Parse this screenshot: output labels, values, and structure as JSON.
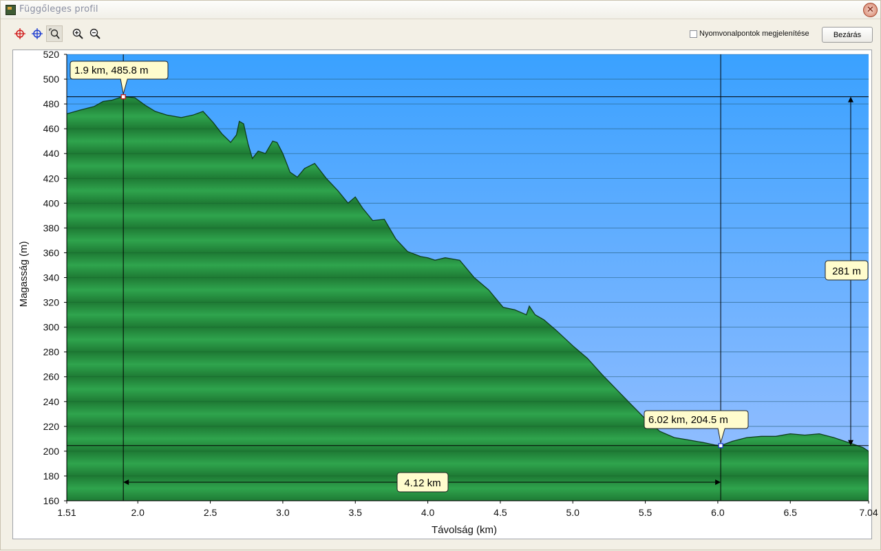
{
  "window": {
    "title": "Függőleges profil"
  },
  "toolbar": {
    "tools": [
      {
        "name": "crosshair-red-icon"
      },
      {
        "name": "crosshair-blue-icon"
      },
      {
        "name": "zoom-select-icon"
      },
      {
        "name": "zoom-in-icon"
      },
      {
        "name": "zoom-out-icon"
      }
    ],
    "show_trackpoints_label": "Nyomvonalpontok megjelenítése",
    "show_trackpoints_checked": false,
    "close_label": "Bezárás"
  },
  "colors": {
    "sky_top": "#3aa1ff",
    "sky_bottom": "#9ac0ff",
    "terrain_dark": "#1e7a34",
    "terrain_light": "#2fa44d"
  },
  "chart_data": {
    "type": "area",
    "xlabel": "Távolság   (km)",
    "ylabel": "Magasság (m)",
    "xlim": [
      1.51,
      7.04
    ],
    "ylim": [
      160,
      520
    ],
    "x_ticks": [
      "1.51",
      "2.0",
      "2.5",
      "3.0",
      "3.5",
      "4.0",
      "4.5",
      "5.0",
      "5.5",
      "6.0",
      "6.5",
      "7.04"
    ],
    "y_ticks": [
      160,
      180,
      200,
      220,
      240,
      260,
      280,
      300,
      320,
      340,
      360,
      380,
      400,
      420,
      440,
      460,
      480,
      500,
      520
    ],
    "grid": true,
    "profile": [
      [
        1.51,
        472
      ],
      [
        1.6,
        475
      ],
      [
        1.7,
        478
      ],
      [
        1.76,
        482
      ],
      [
        1.82,
        483
      ],
      [
        1.9,
        486
      ],
      [
        1.98,
        485
      ],
      [
        2.05,
        479
      ],
      [
        2.12,
        474
      ],
      [
        2.2,
        471
      ],
      [
        2.3,
        469
      ],
      [
        2.38,
        471
      ],
      [
        2.45,
        474
      ],
      [
        2.52,
        465
      ],
      [
        2.58,
        456
      ],
      [
        2.64,
        449
      ],
      [
        2.68,
        455
      ],
      [
        2.7,
        466
      ],
      [
        2.73,
        464
      ],
      [
        2.76,
        448
      ],
      [
        2.79,
        436
      ],
      [
        2.83,
        442
      ],
      [
        2.88,
        440
      ],
      [
        2.93,
        450
      ],
      [
        2.96,
        449
      ],
      [
        3.0,
        440
      ],
      [
        3.05,
        425
      ],
      [
        3.1,
        421
      ],
      [
        3.15,
        428
      ],
      [
        3.22,
        432
      ],
      [
        3.3,
        420
      ],
      [
        3.38,
        410
      ],
      [
        3.45,
        400
      ],
      [
        3.5,
        405
      ],
      [
        3.55,
        396
      ],
      [
        3.62,
        386
      ],
      [
        3.7,
        387
      ],
      [
        3.78,
        371
      ],
      [
        3.86,
        361
      ],
      [
        3.95,
        357
      ],
      [
        4.0,
        356
      ],
      [
        4.05,
        354
      ],
      [
        4.12,
        356
      ],
      [
        4.22,
        354
      ],
      [
        4.32,
        340
      ],
      [
        4.42,
        330
      ],
      [
        4.52,
        316
      ],
      [
        4.6,
        314
      ],
      [
        4.68,
        310
      ],
      [
        4.7,
        317
      ],
      [
        4.74,
        310
      ],
      [
        4.8,
        306
      ],
      [
        4.88,
        298
      ],
      [
        5.0,
        285
      ],
      [
        5.1,
        275
      ],
      [
        5.2,
        262
      ],
      [
        5.3,
        250
      ],
      [
        5.4,
        238
      ],
      [
        5.5,
        226
      ],
      [
        5.6,
        216
      ],
      [
        5.7,
        211
      ],
      [
        5.8,
        209
      ],
      [
        5.9,
        207
      ],
      [
        5.98,
        205
      ],
      [
        6.02,
        204.5
      ],
      [
        6.1,
        208
      ],
      [
        6.2,
        211
      ],
      [
        6.3,
        212
      ],
      [
        6.4,
        212
      ],
      [
        6.5,
        214
      ],
      [
        6.6,
        213
      ],
      [
        6.7,
        214
      ],
      [
        6.8,
        211
      ],
      [
        6.9,
        207
      ],
      [
        7.0,
        203
      ],
      [
        7.04,
        200
      ]
    ],
    "markers": [
      {
        "x": 1.9,
        "y": 485.8,
        "label": "1.9 km, 485.8 m"
      },
      {
        "x": 6.02,
        "y": 204.5,
        "label": "6.02 km, 204.5 m"
      }
    ],
    "distance_annotation": "4.12 km",
    "height_annotation": "281 m"
  }
}
